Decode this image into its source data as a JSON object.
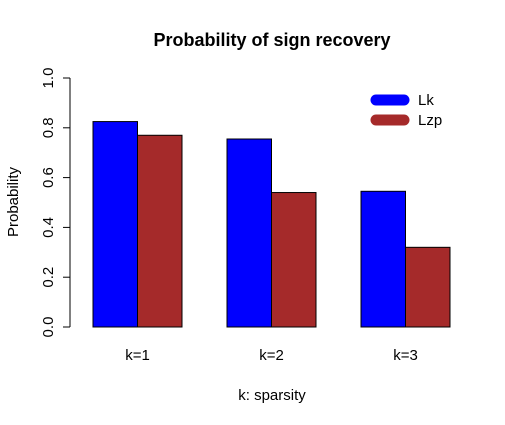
{
  "chart_data": {
    "type": "bar",
    "title": "Probability of sign recovery",
    "xlabel": "k: sparsity",
    "ylabel": "Probability",
    "categories": [
      "k=1",
      "k=2",
      "k=3"
    ],
    "series": [
      {
        "name": "Lk",
        "values": [
          0.825,
          0.755,
          0.545
        ],
        "color": "#0000ff"
      },
      {
        "name": "Lzp",
        "values": [
          0.77,
          0.54,
          0.32
        ],
        "color": "#a52a2a"
      }
    ],
    "ylim": [
      0,
      1
    ],
    "yticks": [
      0.0,
      0.2,
      0.4,
      0.6,
      0.8,
      1.0
    ],
    "ytick_labels": [
      "0.0",
      "0.2",
      "0.4",
      "0.6",
      "0.8",
      "1.0"
    ],
    "grid": false,
    "legend_position": "top-right"
  }
}
